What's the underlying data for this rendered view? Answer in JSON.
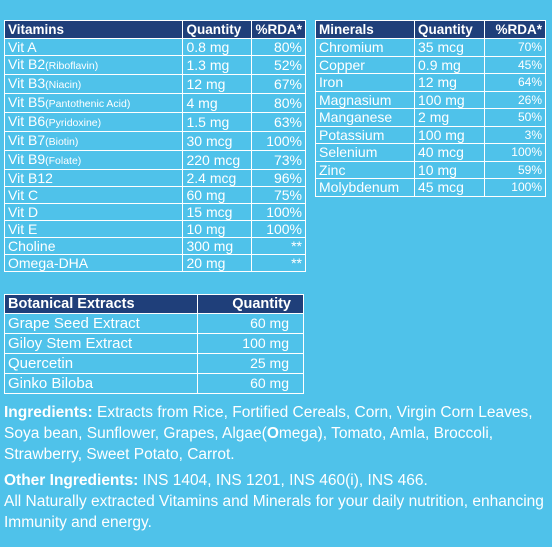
{
  "vitamins": {
    "headers": {
      "name": "Vitamins",
      "qty": "Quantity",
      "rda": "%RDA*"
    },
    "rows": [
      {
        "name": "Vit A",
        "sub": "",
        "qty": "0.8 mg",
        "rda": "80%"
      },
      {
        "name": "Vit B2",
        "sub": "(Riboflavin)",
        "qty": "1.3 mg",
        "rda": "52%"
      },
      {
        "name": "Vit B3",
        "sub": "(Niacin)",
        "qty": "12 mg",
        "rda": "67%"
      },
      {
        "name": "Vit B5",
        "sub": "(Pantothenic Acid)",
        "qty": "4 mg",
        "rda": "80%"
      },
      {
        "name": "Vit B6",
        "sub": "(Pyridoxine)",
        "qty": "1.5 mg",
        "rda": "63%"
      },
      {
        "name": "Vit B7",
        "sub": "(Biotin)",
        "qty": "30 mcg",
        "rda": "100%"
      },
      {
        "name": "Vit B9",
        "sub": "(Folate)",
        "qty": "220 mcg",
        "rda": "73%"
      },
      {
        "name": "Vit B12",
        "sub": "",
        "qty": "2.4 mcg",
        "rda": "96%"
      },
      {
        "name": "Vit C",
        "sub": "",
        "qty": "60 mg",
        "rda": "75%"
      },
      {
        "name": "Vit D",
        "sub": "",
        "qty": "15 mcg",
        "rda": "100%"
      },
      {
        "name": "Vit E",
        "sub": "",
        "qty": "10 mg",
        "rda": "100%"
      },
      {
        "name": "Choline",
        "sub": "",
        "qty": "300 mg",
        "rda": "**"
      },
      {
        "name": "Omega-DHA",
        "sub": "",
        "qty": "20 mg",
        "rda": "**"
      }
    ]
  },
  "minerals": {
    "headers": {
      "name": "Minerals",
      "qty": "Quantity",
      "rda": "%RDA*"
    },
    "rows": [
      {
        "name": "Chromium",
        "qty": "35 mcg",
        "rda": "70%"
      },
      {
        "name": "Copper",
        "qty": "0.9 mg",
        "rda": "45%"
      },
      {
        "name": "Iron",
        "qty": "12 mg",
        "rda": "64%"
      },
      {
        "name": "Magnasium",
        "qty": "100 mg",
        "rda": "26%"
      },
      {
        "name": "Manganese",
        "qty": "2 mg",
        "rda": "50%"
      },
      {
        "name": "Potassium",
        "qty": "100 mg",
        "rda": "3%"
      },
      {
        "name": "Selenium",
        "qty": "40 mcg",
        "rda": "100%"
      },
      {
        "name": "Zinc",
        "qty": "10 mg",
        "rda": "59%"
      },
      {
        "name": "Molybdenum",
        "qty": "45 mcg",
        "rda": "100%"
      }
    ]
  },
  "botanical": {
    "headers": {
      "name": "Botanical Extracts",
      "qty": "Quantity"
    },
    "rows": [
      {
        "name": "Grape Seed Extract",
        "qty": "60 mg"
      },
      {
        "name": "Giloy Stem Extract",
        "qty": "100 mg"
      },
      {
        "name": "Quercetin",
        "qty": "25 mg"
      },
      {
        "name": "Ginko Biloba",
        "qty": "60 mg"
      }
    ]
  },
  "ingredients": {
    "label": "Ingredients:",
    "text_before": " Extracts from Rice, Fortified Cereals, Corn, Virgin Corn Leaves, Soya bean, Sunflower, Grapes, Algae(",
    "text_bold": "O",
    "text_after": "mega), Tomato, Amla, Broccoli, Strawberry, Sweet Potato, Carrot."
  },
  "other_ingredients": {
    "label": "Other Ingredients:",
    "text": " INS 1404, INS 1201, INS 460(i), INS 466."
  },
  "note": "All Naturally extracted Vitamins and Minerals for your  daily  nutrition, enhancing Immunity and energy.",
  "colors": {
    "background": "#4fc2ea",
    "header_fill": "#1f3f7a",
    "text": "#ffffff"
  }
}
